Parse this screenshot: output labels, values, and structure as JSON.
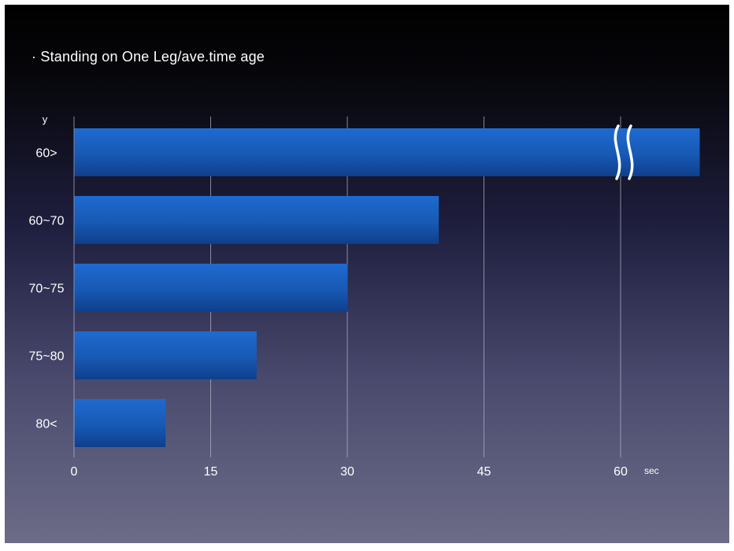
{
  "chart_data": {
    "type": "bar",
    "orientation": "horizontal",
    "title": "· Standing on One Leg/ave.time age",
    "ylabel": "y",
    "xlabel": "sec",
    "categories": [
      "60>",
      "60~70",
      "70~75",
      "75~80",
      "80<"
    ],
    "values": [
      69,
      40,
      30,
      20,
      10
    ],
    "axis_break_at": 60,
    "xlim": [
      0,
      69
    ],
    "xticks": [
      "0",
      "15",
      "30",
      "45",
      "60"
    ],
    "grid": "vertical",
    "legend": "none",
    "bar_color": "#1a5db8"
  }
}
